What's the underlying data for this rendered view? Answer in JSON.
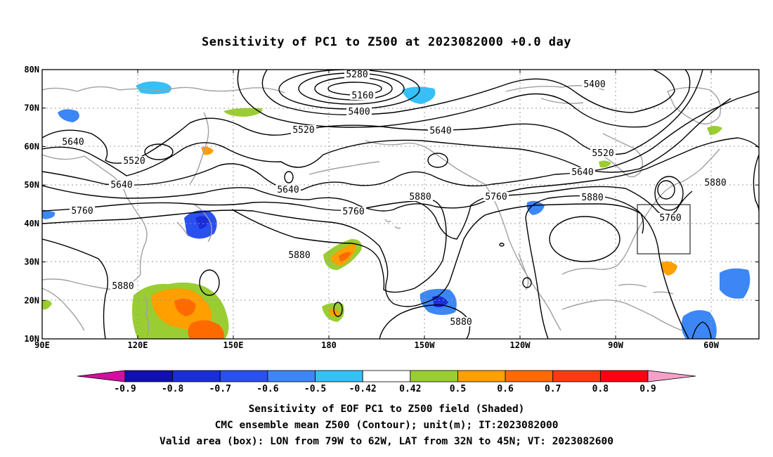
{
  "title": "Sensitivity of PC1 to Z500 at 2023082000 +0.0 day",
  "map": {
    "lat_ticks": [
      "80N",
      "70N",
      "60N",
      "50N",
      "40N",
      "30N",
      "20N",
      "10N"
    ],
    "lon_ticks": [
      "90E",
      "120E",
      "150E",
      "180",
      "150W",
      "120W",
      "90W",
      "60W"
    ],
    "contour_labels": [
      {
        "text": "5280"
      },
      {
        "text": "5160"
      },
      {
        "text": "5400"
      },
      {
        "text": "5400"
      },
      {
        "text": "5520"
      },
      {
        "text": "5640"
      },
      {
        "text": "5640"
      },
      {
        "text": "5520"
      },
      {
        "text": "5640"
      },
      {
        "text": "5520"
      },
      {
        "text": "5640"
      },
      {
        "text": "5640"
      },
      {
        "text": "5760"
      },
      {
        "text": "5760"
      },
      {
        "text": "5760"
      },
      {
        "text": "5880"
      },
      {
        "text": "5880"
      },
      {
        "text": "5760"
      },
      {
        "text": "5880"
      },
      {
        "text": "5880"
      },
      {
        "text": "5880"
      },
      {
        "text": "5880"
      }
    ],
    "valid_box": {
      "lon_west": "79W",
      "lon_east": "62W",
      "lat_south": "32N",
      "lat_north": "45N"
    },
    "contour_color": "#000000",
    "coast_color": "#a0a0a0",
    "grid_color": "#999999"
  },
  "colorbar": {
    "colors": [
      "#d010a0",
      "#1010b0",
      "#1a2ed8",
      "#2a50f0",
      "#3d86f5",
      "#36c0f8",
      "#ffffff",
      "#9acd32",
      "#ff9f00",
      "#ff6a00",
      "#ff3a10",
      "#ff0010",
      "#f5a0c8"
    ],
    "labels": [
      "-0.9",
      "-0.8",
      "-0.7",
      "-0.6",
      "-0.5",
      "-0.42",
      "0.42",
      "0.5",
      "0.6",
      "0.7",
      "0.8",
      "0.9"
    ]
  },
  "captions": {
    "line1": "Sensitivity of EOF PC1 to Z500 field (Shaded)",
    "line2": "CMC ensemble mean Z500 (Contour); unit(m); IT:2023082000",
    "line3": "Valid area (box): LON from 79W to 62W, LAT from 32N to 45N; VT: 2023082600"
  }
}
